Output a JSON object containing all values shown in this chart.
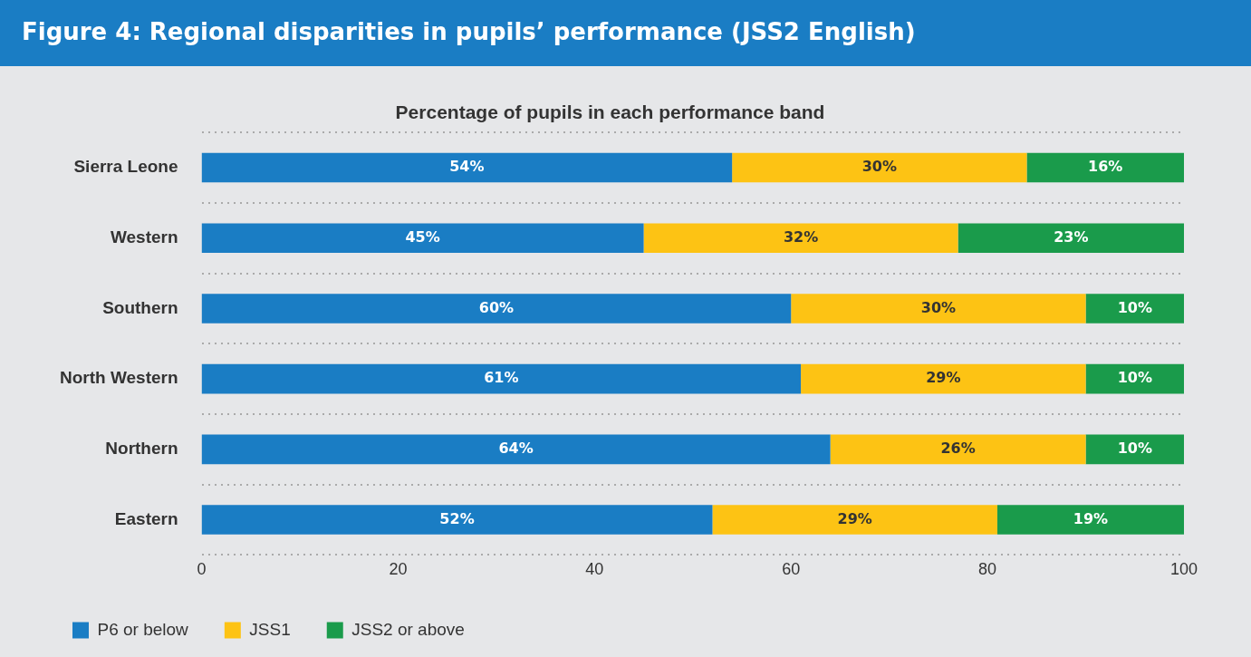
{
  "chart_data": {
    "type": "bar",
    "orientation": "horizontal",
    "stacked": true,
    "title": "Figure 4: Regional disparities in pupils’ performance (JSS2 English)",
    "subtitle": "Percentage of pupils in each performance band",
    "categories": [
      "Sierra Leone",
      "Western",
      "Southern",
      "North Western",
      "Northern",
      "Eastern"
    ],
    "series": [
      {
        "name": "P6 or below",
        "color": "#1a7dc4",
        "values": [
          54,
          45,
          60,
          61,
          64,
          52
        ],
        "value_labels": [
          "54%",
          "45%",
          "60%",
          "61%",
          "64%",
          "52%"
        ]
      },
      {
        "name": "JSS1",
        "color": "#fdc314",
        "values": [
          30,
          32,
          30,
          29,
          26,
          29
        ],
        "value_labels": [
          "30%",
          "32%",
          "30%",
          "29%",
          "26%",
          "29%"
        ]
      },
      {
        "name": "JSS2 or above",
        "color": "#1a9b4b",
        "values": [
          16,
          23,
          10,
          10,
          10,
          19
        ],
        "value_labels": [
          "16%",
          "23%",
          "10%",
          "10%",
          "10%",
          "19%"
        ]
      }
    ],
    "xlim": [
      0,
      100
    ],
    "xticks": [
      0,
      20,
      40,
      60,
      80,
      100
    ],
    "grid": "y",
    "legend": "bottom left"
  }
}
